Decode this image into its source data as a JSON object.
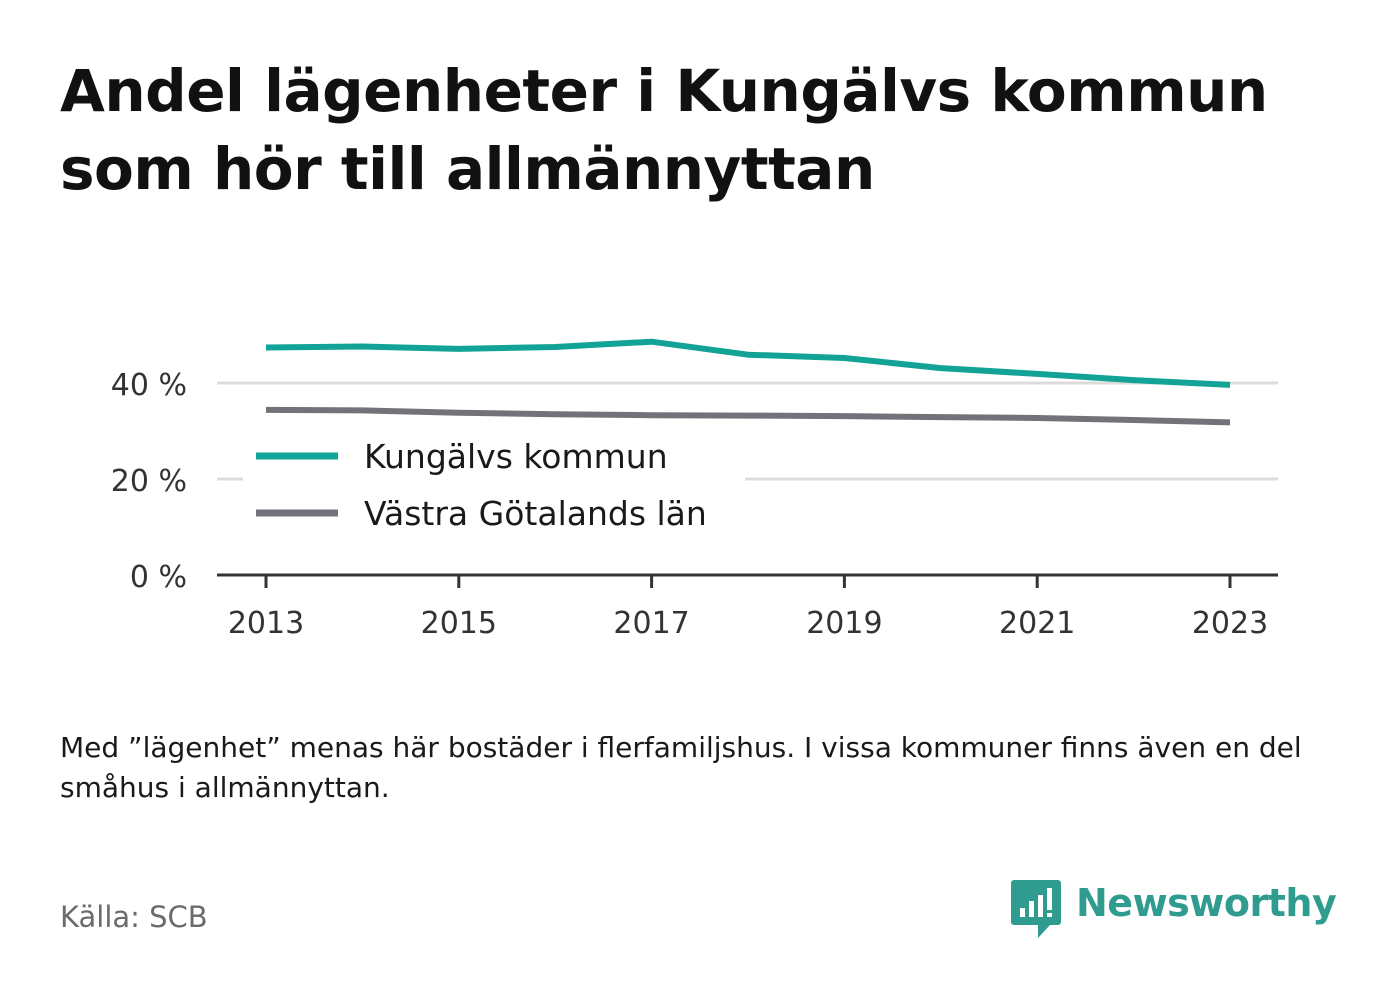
{
  "title": "Andel lägenheter i Kungälvs kommun som hör till allmännyttan",
  "note": "Med ”lägenhet” menas här bostäder i flerfamiljshus. I vissa kommuner finns även en del småhus i allmännyttan.",
  "source": "Källa: SCB",
  "brand": {
    "name": "Newsworthy",
    "icon": "newsworthy-logo-icon",
    "color": "#2f9c8f"
  },
  "chart_data": {
    "type": "line",
    "x": [
      2013,
      2014,
      2015,
      2016,
      2017,
      2018,
      2019,
      2020,
      2021,
      2022,
      2023
    ],
    "xticks": [
      2013,
      2015,
      2017,
      2019,
      2021,
      2023
    ],
    "xtick_labels": [
      "2013",
      "2015",
      "2017",
      "2019",
      "2021",
      "2023"
    ],
    "yticks": [
      0,
      20,
      40
    ],
    "ytick_labels": [
      "0 %",
      "20 %",
      "40 %"
    ],
    "ylim": [
      0,
      50
    ],
    "grid": true,
    "legend_position": "center-left",
    "series": [
      {
        "name": "Kungälvs kommun",
        "color": "#12a396",
        "values": [
          47.4,
          47.6,
          47.1,
          47.5,
          48.6,
          45.9,
          45.2,
          43.1,
          41.9,
          40.6,
          39.6
        ]
      },
      {
        "name": "Västra Götalands län",
        "color": "#737278",
        "values": [
          34.4,
          34.3,
          33.8,
          33.5,
          33.3,
          33.2,
          33.1,
          32.9,
          32.7,
          32.3,
          31.8
        ]
      }
    ]
  }
}
